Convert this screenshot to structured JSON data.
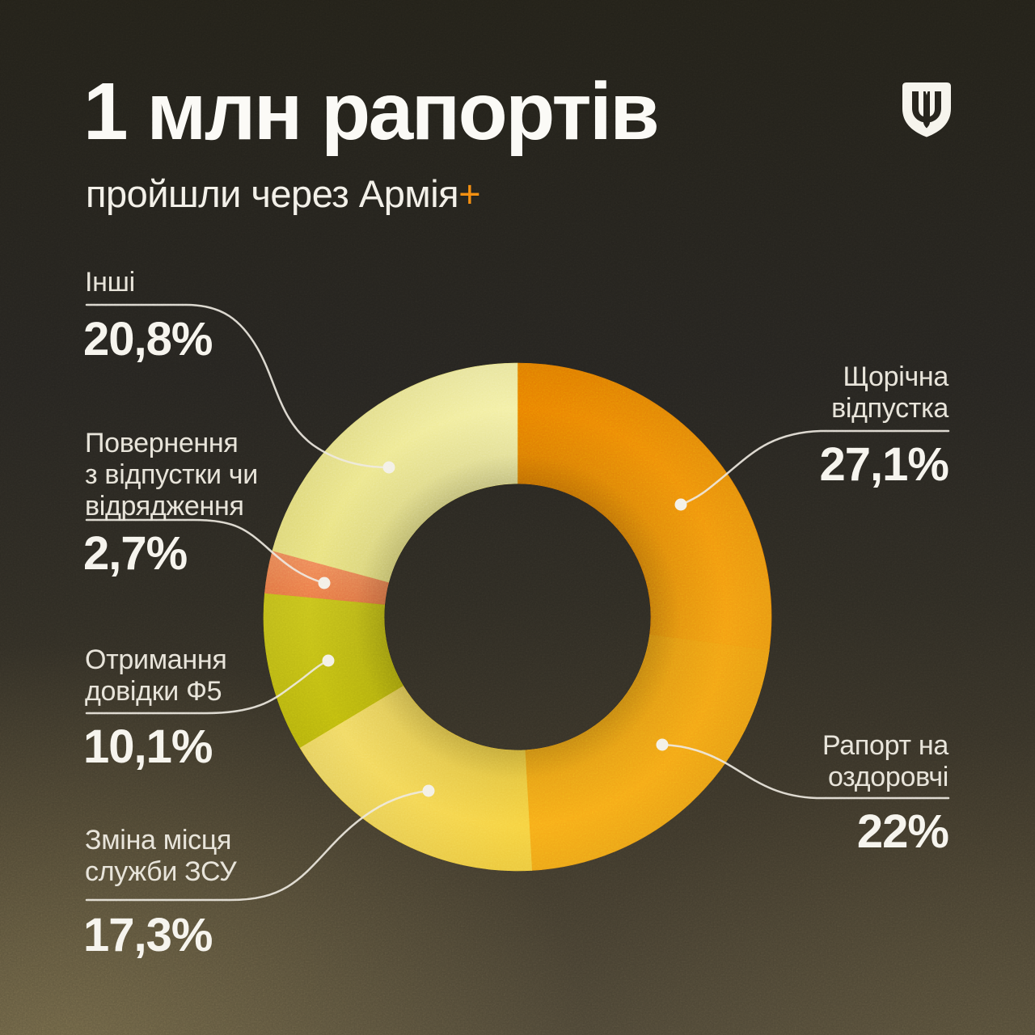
{
  "header": {
    "title": "1 млн рапортів",
    "subtitle": "пройшли через Армія",
    "subtitle_plus": "+",
    "accent_color": "#F5870F",
    "logo": "ukraine-mod-trident-shield"
  },
  "chart_data": {
    "type": "pie",
    "subtype": "donut",
    "title": "1 млн рапортів пройшли через Армія+",
    "direction": "clockwise",
    "start_angle_deg": 0,
    "legend_position": "callouts-around-chart",
    "segments": [
      {
        "id": "shchorichna",
        "label": "Щорічна відпустка",
        "value": 27.1,
        "value_display": "27,1%",
        "color": "#ED8301",
        "color_end": "#F7A013"
      },
      {
        "id": "raport",
        "label": "Рапорт на оздоровчі",
        "value": 22,
        "value_display": "22%",
        "color": "#F5A415",
        "color_end": "#FBAE19"
      },
      {
        "id": "zmina",
        "label": "Зміна місця служби ЗСУ",
        "value": 17.3,
        "value_display": "17,3%",
        "color": "#FAD441",
        "color_end": "#F4DC64"
      },
      {
        "id": "otrymannia",
        "label": "Отримання довідки Ф5",
        "value": 10.1,
        "value_display": "10,1%",
        "color": "#C1BC0E",
        "color_end": "#C9C41C"
      },
      {
        "id": "povernennia",
        "label": "Повернення з відпустки чи відрядження",
        "value": 2.7,
        "value_display": "2,7%",
        "color": "#EF7C48",
        "color_end": "#F28A59"
      },
      {
        "id": "inshi",
        "label": "Інші",
        "value": 20.8,
        "value_display": "20,8%",
        "color": "#ECE580",
        "color_end": "#F6F2A6"
      }
    ],
    "leader_line_color": "#EDE9DF",
    "dot_color": "#F3F0E6"
  },
  "callouts": {
    "inshi": {
      "label": "Інші",
      "value": "20,8%"
    },
    "povernennia": {
      "label": "Повернення\nз відпустки чи\nвідрядження",
      "value": "2,7%"
    },
    "otrymannia": {
      "label": "Отримання\nдовідки Ф5",
      "value": "10,1%"
    },
    "zmina": {
      "label": "Зміна місця\nслужби ЗСУ",
      "value": "17,3%"
    },
    "shchorichna": {
      "label": "Щорічна\nвідпустка",
      "value": "27,1%"
    },
    "raport": {
      "label": "Рапорт на\nоздоровчі",
      "value": "22%"
    }
  }
}
